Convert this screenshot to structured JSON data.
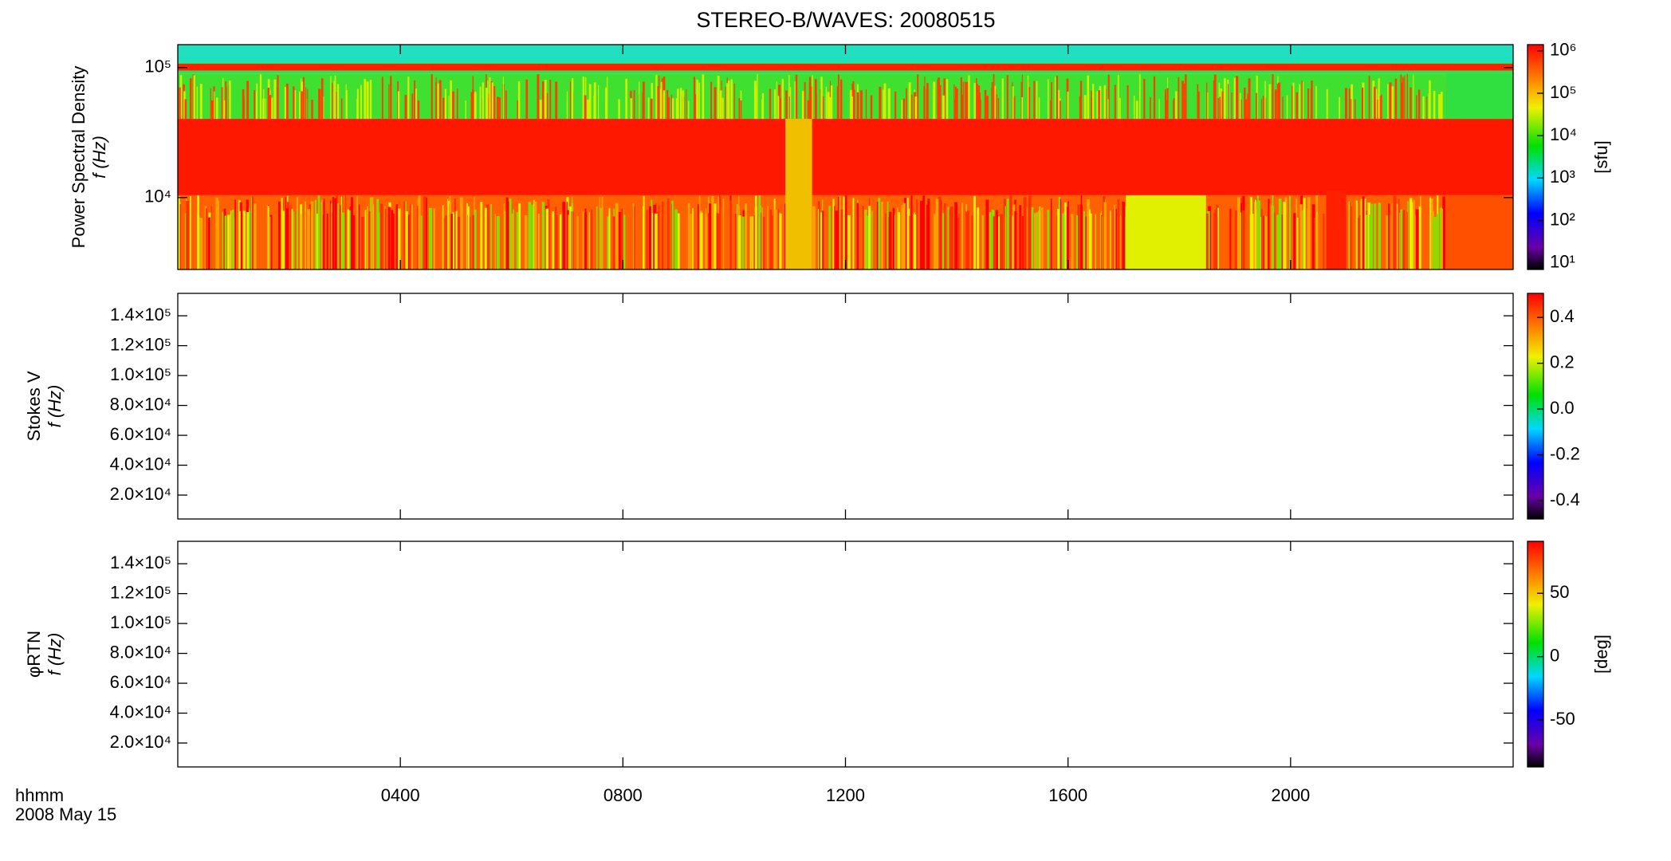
{
  "chart_data": [
    {
      "type": "heatmap",
      "title": "STEREO-B/WAVES: 20080515",
      "ylabel": [
        "Power Spectral Density",
        "f (Hz)"
      ],
      "ylog": true,
      "ylim": [
        2800,
        150000
      ],
      "yticks": [
        {
          "value": 10000,
          "label": "10⁴"
        },
        {
          "value": 100000,
          "label": "10⁵"
        }
      ],
      "colorbar": {
        "log": true,
        "clim": [
          7,
          1400000
        ],
        "label": "[sfu]",
        "ticks": [
          {
            "value": 10,
            "label": "10¹"
          },
          {
            "value": 100,
            "label": "10²"
          },
          {
            "value": 1000,
            "label": "10³"
          },
          {
            "value": 10000,
            "label": "10⁴"
          },
          {
            "value": 100000,
            "label": "10⁵"
          },
          {
            "value": 1000000,
            "label": "10⁶"
          }
        ]
      }
    },
    {
      "type": "heatmap",
      "ylabel": [
        "Stokes V",
        "f (Hz)"
      ],
      "ylog": false,
      "ylim": [
        4000,
        155000
      ],
      "yticks": [
        {
          "value": 20000,
          "label": "2.0×10⁴"
        },
        {
          "value": 40000,
          "label": "4.0×10⁴"
        },
        {
          "value": 60000,
          "label": "6.0×10⁴"
        },
        {
          "value": 80000,
          "label": "8.0×10⁴"
        },
        {
          "value": 100000,
          "label": "1.0×10⁵"
        },
        {
          "value": 120000,
          "label": "1.2×10⁵"
        },
        {
          "value": 140000,
          "label": "1.4×10⁵"
        }
      ],
      "colorbar": {
        "log": false,
        "clim": [
          -0.48,
          0.505
        ],
        "ticks": [
          -0.4,
          -0.2,
          {
            "value": 0,
            "label": "0.0"
          },
          0.2,
          0.4
        ]
      }
    },
    {
      "type": "heatmap",
      "ylabel": [
        "φRTN",
        "f (Hz)"
      ],
      "ylog": false,
      "ylim": [
        4000,
        155000
      ],
      "yticks": [
        {
          "value": 20000,
          "label": "2.0×10⁴"
        },
        {
          "value": 40000,
          "label": "4.0×10⁴"
        },
        {
          "value": 60000,
          "label": "6.0×10⁴"
        },
        {
          "value": 80000,
          "label": "8.0×10⁴"
        },
        {
          "value": 100000,
          "label": "1.0×10⁵"
        },
        {
          "value": 120000,
          "label": "1.2×10⁵"
        },
        {
          "value": 140000,
          "label": "1.4×10⁵"
        }
      ],
      "colorbar": {
        "log": false,
        "clim": [
          -87,
          91
        ],
        "label": "[deg]",
        "ticks": [
          -50,
          0,
          50
        ]
      },
      "xlabel": [
        "hhmm",
        "2008 May 15"
      ],
      "xlim": [
        0,
        24
      ],
      "xticks": [
        {
          "value": 4,
          "label": "0400"
        },
        {
          "value": 8,
          "label": "0800"
        },
        {
          "value": 12,
          "label": "1200"
        },
        {
          "value": 16,
          "label": "1600"
        },
        {
          "value": 20,
          "label": "2000"
        }
      ]
    }
  ]
}
